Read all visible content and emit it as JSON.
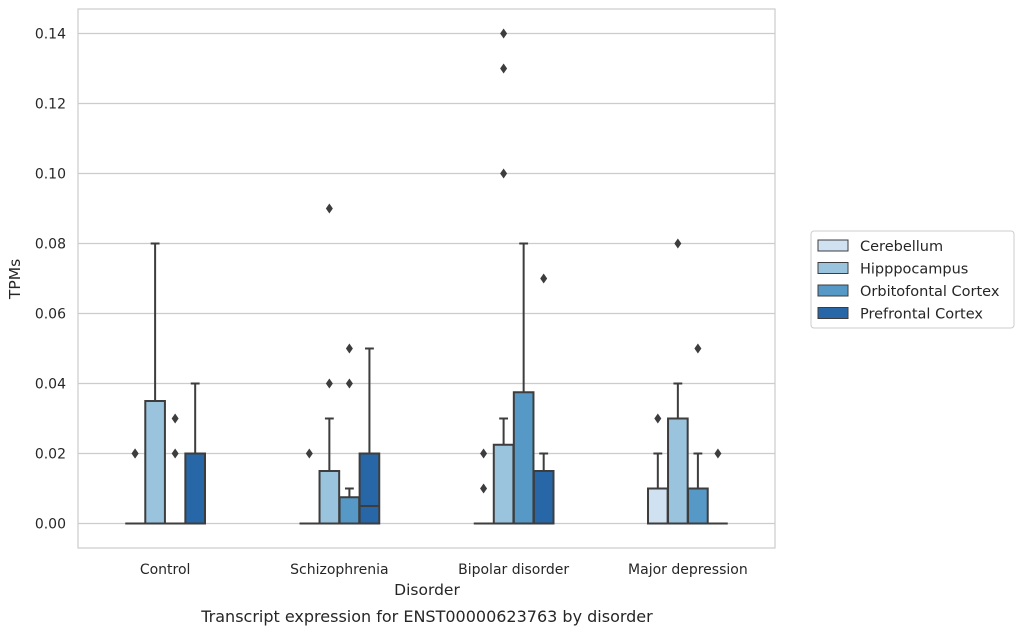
{
  "chart_data": {
    "type": "boxplot",
    "title": "",
    "caption": "Transcript expression for ENST00000623763 by disorder",
    "xlabel": "Disorder",
    "ylabel": "TPMs",
    "ylim": [
      -0.007,
      0.147
    ],
    "yticks": [
      0.0,
      0.02,
      0.04,
      0.06,
      0.08,
      0.1,
      0.12,
      0.14
    ],
    "ytick_labels": [
      "0.00",
      "0.02",
      "0.04",
      "0.06",
      "0.08",
      "0.10",
      "0.12",
      "0.14"
    ],
    "grid": "horizontal",
    "legend_position": "right",
    "categories": [
      "Control",
      "Schizophrenia",
      "Bipolar disorder",
      "Major depression"
    ],
    "series": [
      {
        "name": "Cerebellum",
        "color": "#d0e1f1",
        "boxes": [
          {
            "min": 0,
            "q1": 0,
            "median": 0,
            "q3": 0,
            "max": 0,
            "outliers": [
              0.02,
              0.02
            ]
          },
          {
            "min": 0,
            "q1": 0,
            "median": 0,
            "q3": 0,
            "max": 0,
            "outliers": [
              0.02
            ]
          },
          {
            "min": 0,
            "q1": 0,
            "median": 0,
            "q3": 0,
            "max": 0,
            "outliers": [
              0.01,
              0.02
            ]
          },
          {
            "min": 0,
            "q1": 0,
            "median": 0,
            "q3": 0.01,
            "max": 0.02,
            "outliers": [
              0.03
            ]
          }
        ]
      },
      {
        "name": "Hipppocampus",
        "color": "#9ac3dd",
        "boxes": [
          {
            "min": 0,
            "q1": 0,
            "median": 0,
            "q3": 0.035,
            "max": 0.08,
            "outliers": []
          },
          {
            "min": 0,
            "q1": 0,
            "median": 0,
            "q3": 0.015,
            "max": 0.03,
            "outliers": [
              0.04,
              0.09
            ]
          },
          {
            "min": 0,
            "q1": 0,
            "median": 0,
            "q3": 0.0225,
            "max": 0.03,
            "outliers": [
              0.1,
              0.13,
              0.14
            ]
          },
          {
            "min": 0,
            "q1": 0,
            "median": 0,
            "q3": 0.03,
            "max": 0.04,
            "outliers": [
              0.08
            ]
          }
        ]
      },
      {
        "name": "Orbitofontal Cortex",
        "color": "#5799c6",
        "boxes": [
          {
            "min": 0,
            "q1": 0,
            "median": 0,
            "q3": 0,
            "max": 0,
            "outliers": [
              0.02,
              0.03
            ]
          },
          {
            "min": 0,
            "q1": 0,
            "median": 0,
            "q3": 0.0075,
            "max": 0.01,
            "outliers": [
              0.04,
              0.05
            ]
          },
          {
            "min": 0,
            "q1": 0,
            "median": 0,
            "q3": 0.0375,
            "max": 0.08,
            "outliers": []
          },
          {
            "min": 0,
            "q1": 0,
            "median": 0,
            "q3": 0.01,
            "max": 0.02,
            "outliers": [
              0.05
            ]
          }
        ]
      },
      {
        "name": "Prefrontal Cortex",
        "color": "#2767a8",
        "boxes": [
          {
            "min": 0,
            "q1": 0,
            "median": 0,
            "q3": 0.02,
            "max": 0.04,
            "outliers": []
          },
          {
            "min": 0,
            "q1": 0,
            "median": 0.005,
            "q3": 0.02,
            "max": 0.05,
            "outliers": []
          },
          {
            "min": 0,
            "q1": 0,
            "median": 0,
            "q3": 0.015,
            "max": 0.02,
            "outliers": [
              0.07
            ]
          },
          {
            "min": 0,
            "q1": 0,
            "median": 0,
            "q3": 0,
            "max": 0,
            "outliers": [
              0.02
            ]
          }
        ]
      }
    ]
  }
}
